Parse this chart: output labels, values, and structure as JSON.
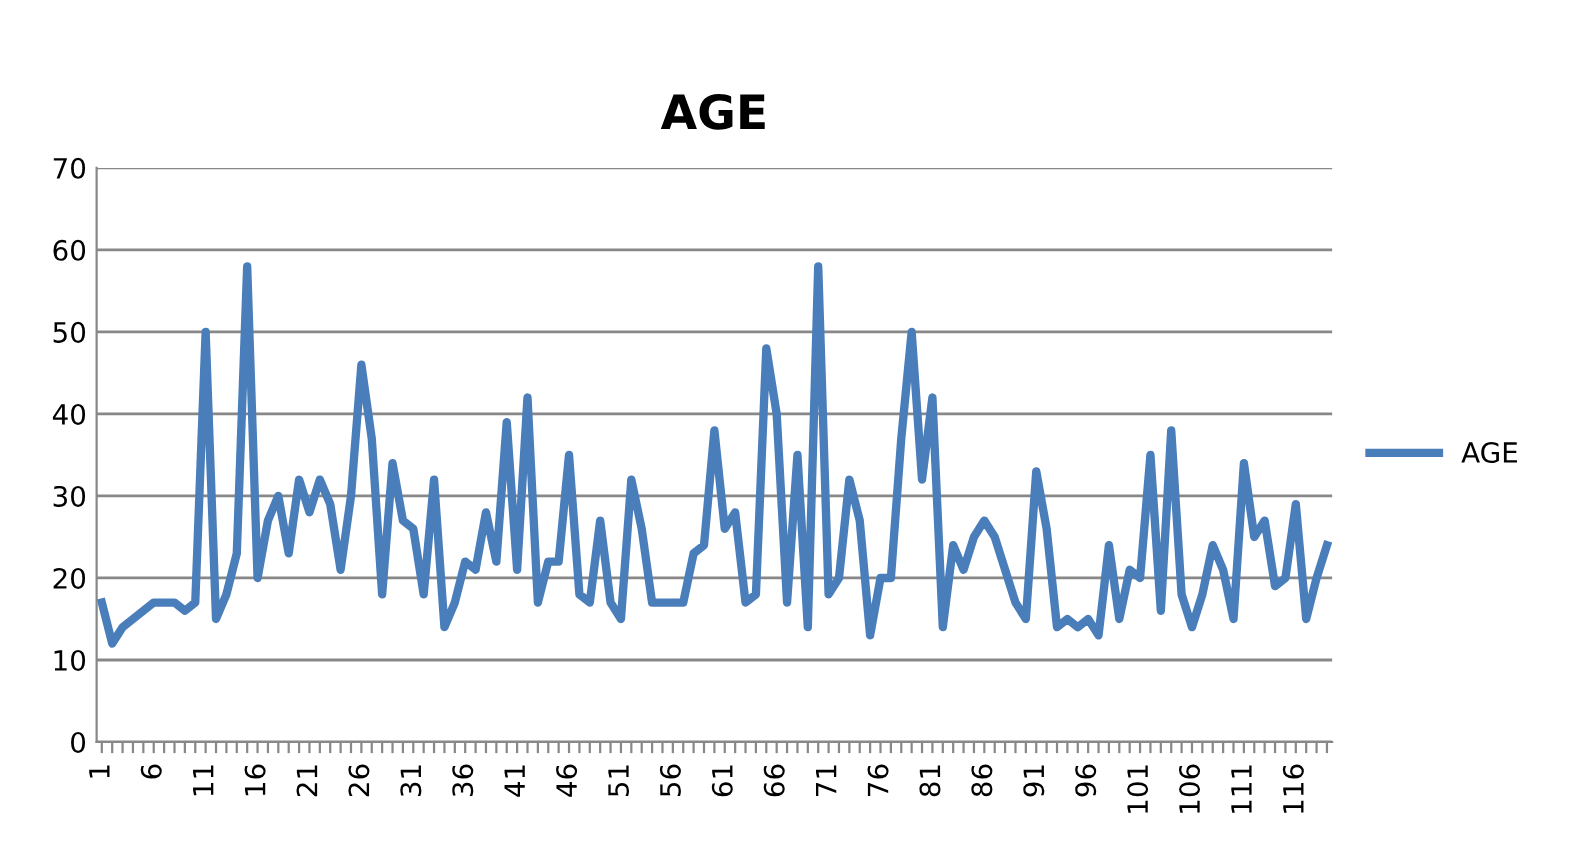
{
  "chart_data": {
    "type": "line",
    "title": "AGE",
    "categories": [
      "1",
      null,
      null,
      null,
      null,
      "6",
      null,
      null,
      null,
      null,
      "11",
      null,
      null,
      null,
      null,
      "16",
      null,
      null,
      null,
      null,
      "21",
      null,
      null,
      null,
      null,
      "26",
      null,
      null,
      null,
      null,
      "31",
      null,
      null,
      null,
      null,
      "36",
      null,
      null,
      null,
      null,
      "41",
      null,
      null,
      null,
      null,
      "46",
      null,
      null,
      null,
      null,
      "51",
      null,
      null,
      null,
      null,
      "56",
      null,
      null,
      null,
      null,
      "61",
      null,
      null,
      null,
      null,
      "66",
      null,
      null,
      null,
      null,
      "71",
      null,
      null,
      null,
      null,
      "76",
      null,
      null,
      null,
      null,
      "81",
      null,
      null,
      null,
      null,
      "86",
      null,
      null,
      null,
      null,
      "91",
      null,
      null,
      null,
      null,
      "96",
      null,
      null,
      null,
      null,
      "101",
      null,
      null,
      null,
      null,
      "106",
      null,
      null,
      null,
      null,
      "111",
      null,
      null,
      null,
      null,
      "116",
      null,
      null,
      null
    ],
    "series": [
      {
        "name": "AGE",
        "color": "#4a7ebb",
        "values": [
          17,
          12,
          14,
          15,
          16,
          17,
          17,
          17,
          16,
          17,
          50,
          15,
          18,
          23,
          58,
          20,
          27,
          30,
          23,
          32,
          28,
          32,
          29,
          21,
          30,
          46,
          37,
          18,
          34,
          27,
          26,
          18,
          32,
          14,
          17,
          22,
          21,
          28,
          22,
          39,
          21,
          42,
          17,
          22,
          22,
          35,
          18,
          17,
          27,
          17,
          15,
          32,
          26,
          17,
          17,
          17,
          17,
          23,
          24,
          38,
          26,
          28,
          17,
          18,
          48,
          40,
          17,
          35,
          14,
          58,
          18,
          20,
          32,
          27,
          13,
          20,
          20,
          37,
          50,
          32,
          42,
          14,
          24,
          21,
          25,
          27,
          25,
          21,
          17,
          15,
          33,
          26,
          14,
          15,
          14,
          15,
          13,
          24,
          15,
          21,
          20,
          35,
          16,
          38,
          18,
          14,
          18,
          24,
          21,
          15,
          34,
          25,
          27,
          19,
          20,
          29,
          15,
          20,
          24
        ]
      }
    ],
    "ylim": [
      0,
      70
    ],
    "yticks": [
      0,
      10,
      20,
      30,
      40,
      50,
      60,
      70
    ],
    "grid": "y",
    "legend": "right",
    "line_style": "solid",
    "marker": "none"
  }
}
